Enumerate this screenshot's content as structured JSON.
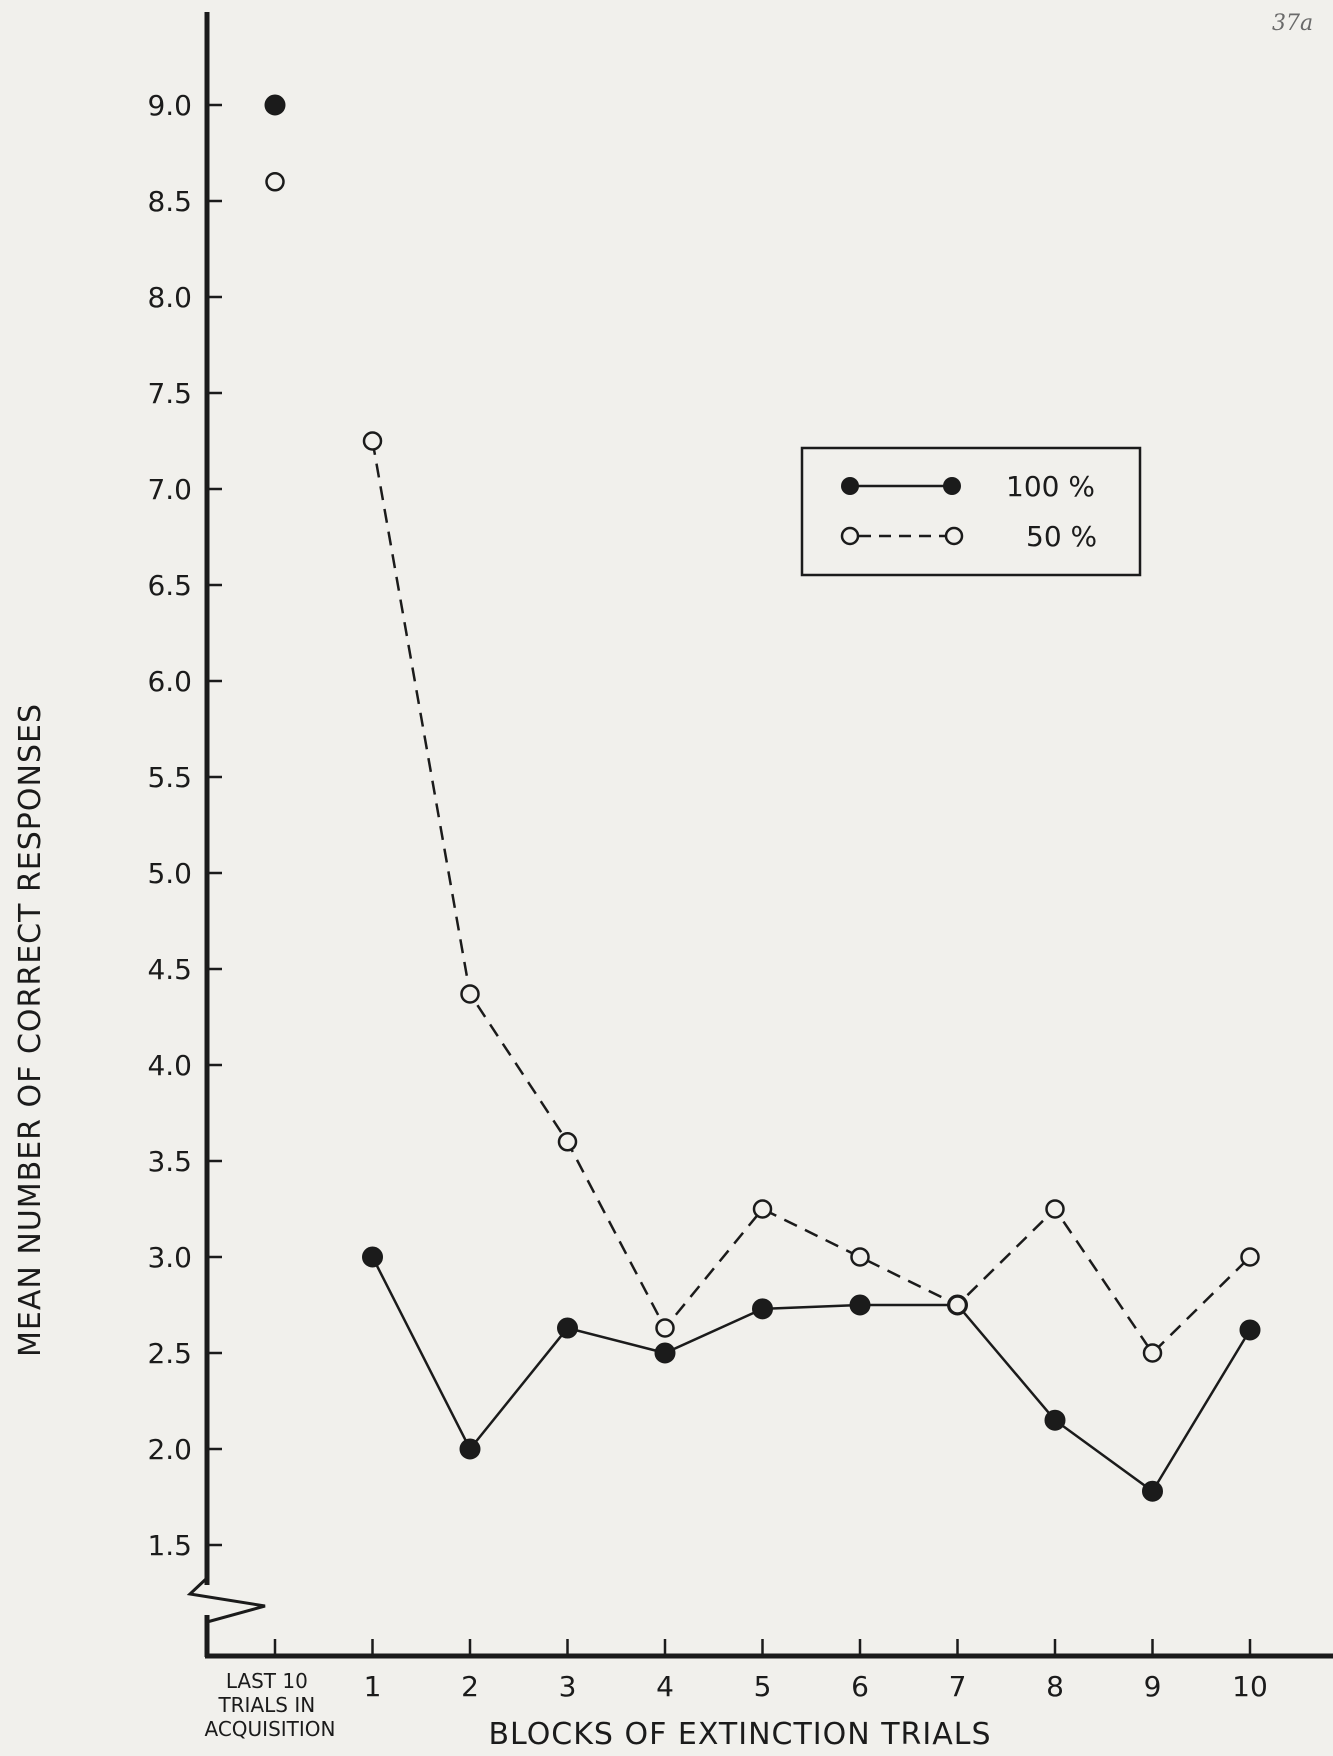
{
  "page_note": "37a",
  "chart_data": {
    "type": "line",
    "title": "",
    "xlabel": "BLOCKS OF EXTINCTION TRIALS",
    "ylabel": "MEAN NUMBER OF CORRECT RESPONSES",
    "ylim": [
      1.5,
      9.0
    ],
    "yticks": [
      "1.5",
      "2.0",
      "2.5",
      "3.0",
      "3.5",
      "4.0",
      "4.5",
      "5.0",
      "5.5",
      "6.0",
      "6.5",
      "7.0",
      "7.5",
      "8.0",
      "8.5",
      "9.0"
    ],
    "categories": [
      "LAST 10 TRIALS IN ACQUISITION",
      "1",
      "2",
      "3",
      "4",
      "5",
      "6",
      "7",
      "8",
      "9",
      "10"
    ],
    "acquisition_label_lines": [
      "LAST 10",
      "TRIALS IN",
      "ACQUISITION"
    ],
    "grid": false,
    "legend_position": "top-right",
    "series": [
      {
        "name": "100 %",
        "marker": "filled-circle",
        "line": "solid",
        "color": "#1b1b1b",
        "values": [
          9.0,
          3.0,
          2.0,
          2.63,
          2.5,
          2.73,
          2.75,
          2.75,
          2.15,
          1.78,
          2.62
        ],
        "connected_from": 1
      },
      {
        "name": "50 %",
        "marker": "open-circle",
        "line": "dashed",
        "color": "#1b1b1b",
        "values": [
          8.6,
          7.25,
          4.37,
          3.6,
          2.63,
          3.25,
          3.0,
          2.75,
          3.25,
          2.5,
          3.0
        ],
        "connected_from": 1
      }
    ]
  }
}
